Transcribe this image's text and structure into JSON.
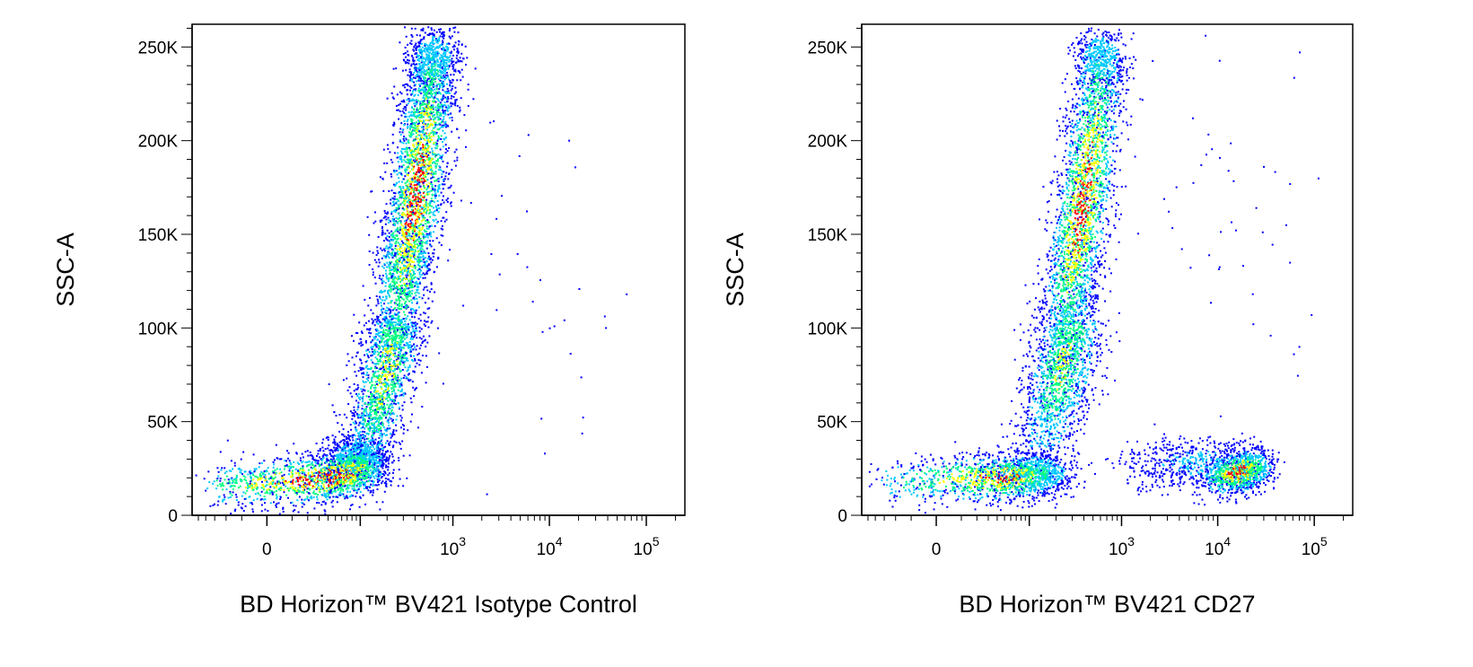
{
  "chart_data": [
    {
      "type": "scatter",
      "title": "",
      "xlabel": "BD Horizon™ BV421 Isotype Control",
      "ylabel": "SSC-A",
      "xscale": "biexponential",
      "ylim": [
        0,
        262144
      ],
      "xlim": [
        -60,
        250000
      ],
      "y_ticks": [
        {
          "value": 0,
          "label": "0"
        },
        {
          "value": 50000,
          "label": "50K"
        },
        {
          "value": 100000,
          "label": "100K"
        },
        {
          "value": 150000,
          "label": "150K"
        },
        {
          "value": 200000,
          "label": "200K"
        },
        {
          "value": 250000,
          "label": "250K"
        }
      ],
      "x_ticks": [
        {
          "value": 0,
          "base": "0",
          "exp": ""
        },
        {
          "value": 1000,
          "base": "10",
          "exp": "3"
        },
        {
          "value": 10000,
          "base": "10",
          "exp": "4"
        },
        {
          "value": 100000,
          "base": "10",
          "exp": "5"
        }
      ],
      "density_colors": [
        "#0000ff",
        "#00c8ff",
        "#00ff80",
        "#ffff00",
        "#ff0000"
      ],
      "series": [
        {
          "x": [
            -25,
            5,
            35,
            60,
            80,
            95,
            90
          ],
          "y": [
            16000,
            18000,
            20000,
            22000,
            24000,
            27000,
            32000
          ],
          "density": [
            0.5,
            0.85,
            1.0,
            0.95,
            0.8,
            0.6,
            0.4
          ],
          "spread_x": 0.035,
          "spread_y": 6500,
          "count": 2300
        },
        {
          "x": [
            120,
            150,
            180,
            210,
            240
          ],
          "y": [
            38000,
            55000,
            70000,
            85000,
            98000
          ],
          "density": [
            0.35,
            0.6,
            0.7,
            0.75,
            0.55
          ],
          "spread_x": 0.03,
          "spread_y": 7000,
          "count": 1500
        },
        {
          "x": [
            260,
            300,
            340,
            390,
            440,
            500,
            560,
            620
          ],
          "y": [
            110000,
            130000,
            148000,
            165000,
            185000,
            205000,
            225000,
            245000
          ],
          "density": [
            0.55,
            0.7,
            0.85,
            0.95,
            0.9,
            0.8,
            0.6,
            0.4
          ],
          "spread_x": 0.028,
          "spread_y": 9000,
          "count": 3400
        },
        {
          "x": [
            1500,
            3000,
            5000,
            9000,
            20000,
            25000,
            2000,
            700
          ],
          "y": [
            200000,
            180000,
            140000,
            95000,
            210000,
            50000,
            30000,
            250000
          ],
          "density": [
            0.05,
            0.05,
            0.05,
            0.05,
            0.05,
            0.05,
            0.05,
            0.05
          ],
          "spread_x": 0.08,
          "spread_y": 25000,
          "count": 40
        }
      ]
    },
    {
      "type": "scatter",
      "title": "",
      "xlabel": "BD Horizon™ BV421 CD27",
      "ylabel": "SSC-A",
      "xscale": "biexponential",
      "ylim": [
        0,
        262144
      ],
      "xlim": [
        -60,
        250000
      ],
      "y_ticks": [
        {
          "value": 0,
          "label": "0"
        },
        {
          "value": 50000,
          "label": "50K"
        },
        {
          "value": 100000,
          "label": "100K"
        },
        {
          "value": 150000,
          "label": "150K"
        },
        {
          "value": 200000,
          "label": "200K"
        },
        {
          "value": 250000,
          "label": "250K"
        }
      ],
      "x_ticks": [
        {
          "value": 0,
          "base": "0",
          "exp": ""
        },
        {
          "value": 1000,
          "base": "10",
          "exp": "3"
        },
        {
          "value": 10000,
          "base": "10",
          "exp": "4"
        },
        {
          "value": 100000,
          "base": "10",
          "exp": "5"
        }
      ],
      "density_colors": [
        "#0000ff",
        "#00c8ff",
        "#00ff80",
        "#ffff00",
        "#ff0000"
      ],
      "series": [
        {
          "x": [
            -20,
            10,
            40,
            70,
            100,
            130
          ],
          "y": [
            18000,
            20000,
            20000,
            21000,
            22000,
            23000
          ],
          "density": [
            0.4,
            0.75,
            0.9,
            0.85,
            0.6,
            0.4
          ],
          "spread_x": 0.04,
          "spread_y": 6500,
          "count": 1700
        },
        {
          "x": [
            140,
            170,
            200,
            230,
            260,
            290
          ],
          "y": [
            40000,
            55000,
            68000,
            78000,
            88000,
            100000
          ],
          "density": [
            0.3,
            0.45,
            0.6,
            0.7,
            0.65,
            0.55
          ],
          "spread_x": 0.035,
          "spread_y": 9000,
          "count": 1500
        },
        {
          "x": [
            250,
            290,
            330,
            370,
            420,
            480,
            540,
            600
          ],
          "y": [
            110000,
            128000,
            145000,
            162000,
            180000,
            200000,
            222000,
            245000
          ],
          "density": [
            0.5,
            0.7,
            0.85,
            0.95,
            0.9,
            0.8,
            0.6,
            0.4
          ],
          "spread_x": 0.028,
          "spread_y": 9000,
          "count": 2800
        },
        {
          "x": [
            1500,
            2500,
            4000,
            6000,
            8000
          ],
          "y": [
            25000,
            28000,
            30000,
            28000,
            27000
          ],
          "density": [
            0.15,
            0.2,
            0.25,
            0.3,
            0.35
          ],
          "spread_x": 0.045,
          "spread_y": 7000,
          "count": 500
        },
        {
          "x": [
            10000,
            13000,
            16000,
            19000,
            23000
          ],
          "y": [
            20000,
            22000,
            23000,
            25000,
            26000
          ],
          "density": [
            0.5,
            0.8,
            1.0,
            0.85,
            0.5
          ],
          "spread_x": 0.025,
          "spread_y": 5500,
          "count": 1100
        },
        {
          "x": [
            1200,
            3000,
            8000,
            12000,
            20000,
            30000,
            45000
          ],
          "y": [
            190000,
            160000,
            140000,
            210000,
            120000,
            230000,
            110000
          ],
          "density": [
            0.05,
            0.05,
            0.05,
            0.05,
            0.05,
            0.05,
            0.05
          ],
          "spread_x": 0.08,
          "spread_y": 25000,
          "count": 45
        }
      ]
    }
  ]
}
